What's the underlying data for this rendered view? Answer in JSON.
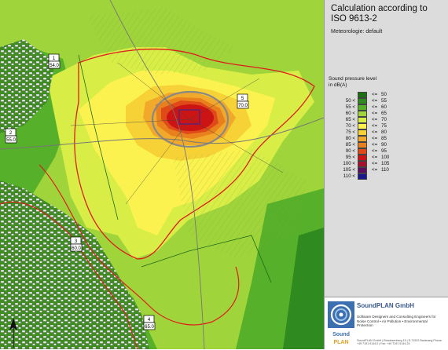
{
  "title_line1": "Calculation according to",
  "title_line2": "ISO 9613-2",
  "subtitle": "Meteorologie: default",
  "legend": {
    "heading_line1": "Sound pressure level",
    "heading_line2": "in dB(A)",
    "classes": [
      {
        "range": "",
        "le": "<=",
        "value": "50",
        "color": "#1e6e14"
      },
      {
        "range": "50 <",
        "le": "<=",
        "value": "55",
        "color": "#2f8a1f"
      },
      {
        "range": "55 <",
        "le": "<=",
        "value": "60",
        "color": "#57b029"
      },
      {
        "range": "60 <",
        "le": "<=",
        "value": "65",
        "color": "#9fd43a"
      },
      {
        "range": "65 <",
        "le": "<=",
        "value": "70",
        "color": "#d8ee47"
      },
      {
        "range": "70 <",
        "le": "<=",
        "value": "75",
        "color": "#fbf24f"
      },
      {
        "range": "75 <",
        "le": "<=",
        "value": "80",
        "color": "#f7d237"
      },
      {
        "range": "80 <",
        "le": "<=",
        "value": "85",
        "color": "#f0a92a"
      },
      {
        "range": "85 <",
        "le": "<=",
        "value": "90",
        "color": "#e8801e"
      },
      {
        "range": "90 <",
        "le": "<=",
        "value": "95",
        "color": "#e04a18"
      },
      {
        "range": "95 <",
        "le": "<=",
        "value": "100",
        "color": "#cc1414"
      },
      {
        "range": "100 <",
        "le": "<=",
        "value": "105",
        "color": "#a5102e"
      },
      {
        "range": "105 <",
        "le": "<=",
        "value": "110",
        "color": "#5a0f5f"
      },
      {
        "range": "110 <",
        "le": "",
        "value": "",
        "color": "#1a1a8a"
      }
    ]
  },
  "company": {
    "name": "SoundPLAN GmbH",
    "logo_text": "Sound PLAN",
    "tagline": "Software Designers and Consulting Engineers for Noise Control • Air Pollution • Environmental Protection",
    "address": "SoundPLAN GmbH | Etzwiesenberg 15 | D-71522 Backnang Phone: +49 7191 9144-0 | Fax: +49 7191 9144-24"
  },
  "receivers": [
    {
      "id": "1",
      "value": "54.0"
    },
    {
      "id": "2",
      "value": "55.0"
    },
    {
      "id": "3",
      "value": "60.0"
    },
    {
      "id": "4",
      "value": "65.0"
    },
    {
      "id": "5",
      "value": "70.0"
    }
  ],
  "map": {
    "north_arrow": "north-arrow-icon"
  }
}
